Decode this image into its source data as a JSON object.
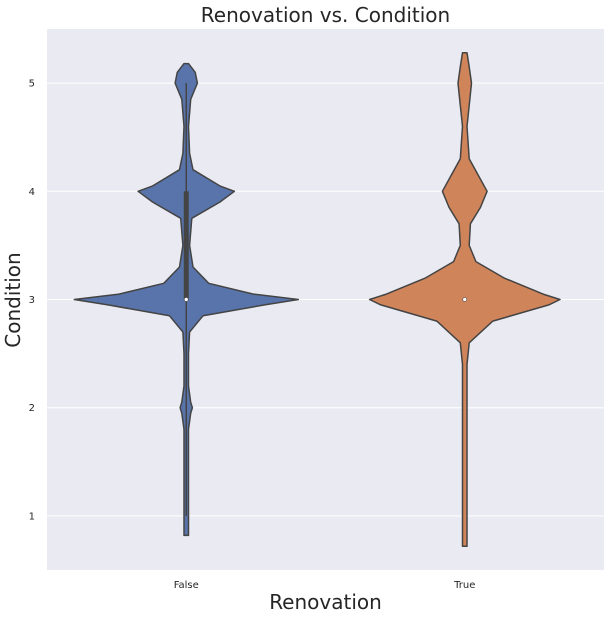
{
  "chart_data": {
    "type": "violin",
    "title": "Renovation vs. Condition",
    "xlabel": "Renovation",
    "ylabel": "Condition",
    "categories": [
      "False",
      "True"
    ],
    "ylim": [
      0.5,
      5.5
    ],
    "yticks": [
      "1",
      "2",
      "3",
      "4",
      "5"
    ],
    "grid": "horizontal",
    "background": "#eaeaf2",
    "gridColor": "#ffffff",
    "outlineColor": "#444444",
    "series": [
      {
        "category": "False",
        "color": "#5874aa",
        "extent": [
          0.82,
          5.18
        ],
        "quartiles": [
          3,
          3,
          4
        ],
        "whisker": [
          1,
          5
        ],
        "median": 3,
        "density": [
          [
            0.82,
            0.02
          ],
          [
            1.2,
            0.02
          ],
          [
            1.8,
            0.02
          ],
          [
            1.95,
            0.04
          ],
          [
            2.0,
            0.055
          ],
          [
            2.05,
            0.04
          ],
          [
            2.2,
            0.02
          ],
          [
            2.5,
            0.02
          ],
          [
            2.7,
            0.03
          ],
          [
            2.85,
            0.15
          ],
          [
            2.95,
            0.7
          ],
          [
            3.0,
            1.0
          ],
          [
            3.05,
            0.6
          ],
          [
            3.15,
            0.2
          ],
          [
            3.3,
            0.06
          ],
          [
            3.5,
            0.03
          ],
          [
            3.75,
            0.05
          ],
          [
            3.9,
            0.3
          ],
          [
            4.0,
            0.43
          ],
          [
            4.05,
            0.3
          ],
          [
            4.2,
            0.06
          ],
          [
            4.35,
            0.03
          ],
          [
            4.6,
            0.02
          ],
          [
            4.85,
            0.04
          ],
          [
            5.0,
            0.1
          ],
          [
            5.1,
            0.08
          ],
          [
            5.18,
            0.02
          ]
        ]
      },
      {
        "category": "True",
        "color": "#d0845a",
        "extent": [
          0.72,
          5.28
        ],
        "quartiles": [
          3,
          3,
          3
        ],
        "whisker": [
          3,
          3
        ],
        "median": 3,
        "density": [
          [
            0.72,
            0.02
          ],
          [
            1.5,
            0.02
          ],
          [
            2.0,
            0.02
          ],
          [
            2.4,
            0.02
          ],
          [
            2.6,
            0.04
          ],
          [
            2.8,
            0.25
          ],
          [
            2.95,
            0.75
          ],
          [
            3.0,
            0.85
          ],
          [
            3.05,
            0.7
          ],
          [
            3.2,
            0.35
          ],
          [
            3.35,
            0.1
          ],
          [
            3.5,
            0.04
          ],
          [
            3.7,
            0.05
          ],
          [
            3.85,
            0.14
          ],
          [
            4.0,
            0.2
          ],
          [
            4.15,
            0.12
          ],
          [
            4.3,
            0.04
          ],
          [
            4.6,
            0.02
          ],
          [
            4.9,
            0.05
          ],
          [
            5.0,
            0.06
          ],
          [
            5.15,
            0.04
          ],
          [
            5.28,
            0.02
          ]
        ]
      }
    ]
  }
}
